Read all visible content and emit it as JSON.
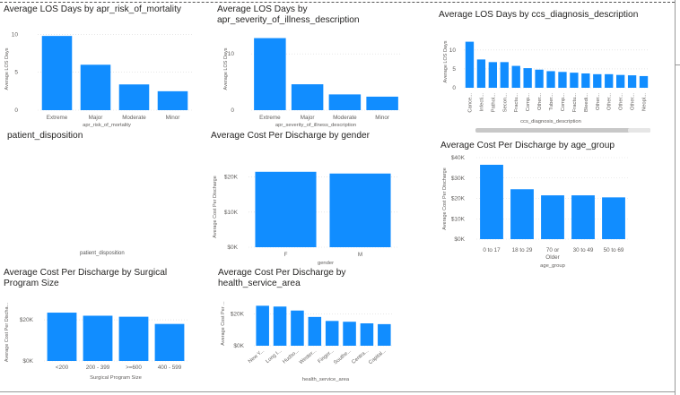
{
  "colors": {
    "bar": "#118DFF",
    "grid": "#d9d9d9",
    "text": "#605E5C",
    "title": "#252423"
  },
  "titles": {
    "mortality": "Average LOS Days by apr_risk_of_mortality",
    "severity_line1": "Average LOS Days by",
    "severity_line2": "apr_severity_of_illness_description",
    "diagnosis": "Average LOS Days by ccs_diagnosis_description",
    "disposition": "patient_disposition",
    "gender": "Average Cost Per Discharge by gender",
    "age": "Average Cost Per Discharge by age_group",
    "surgical_line1": "Average Cost Per Discharge by Surgical",
    "surgical_line2": "Program Size",
    "hsa_line1": "Average Cost Per Discharge by",
    "hsa_line2": "health_service_area"
  },
  "disposition_axis_label": "patient_disposition",
  "chart_data": [
    {
      "id": "mortality",
      "type": "bar",
      "title": "Average LOS Days by apr_risk_of_mortality",
      "xlabel": "apr_risk_of_mortality",
      "ylabel": "Average LOS Days",
      "categories": [
        "Extreme",
        "Major",
        "Moderate",
        "Minor"
      ],
      "values": [
        9.8,
        6.0,
        3.4,
        2.5
      ],
      "ylim": [
        0,
        11
      ],
      "yticks": [
        0,
        5,
        10
      ],
      "ytick_labels": [
        "0",
        "5",
        "10"
      ]
    },
    {
      "id": "severity",
      "type": "bar",
      "title": "Average LOS Days by apr_severity_of_illness_description",
      "xlabel": "apr_severity_of_illness_description",
      "ylabel": "Average LOS Days",
      "categories": [
        "Extreme",
        "Major",
        "Moderate",
        "Minor"
      ],
      "values": [
        12.8,
        4.6,
        2.8,
        2.4
      ],
      "ylim": [
        0,
        14
      ],
      "yticks": [
        0,
        10
      ],
      "ytick_labels": [
        "0",
        "10"
      ]
    },
    {
      "id": "diagnosis",
      "type": "bar",
      "title": "Average LOS Days by ccs_diagnosis_description",
      "xlabel": "ccs_diagnosis_description",
      "ylabel": "Average LOS Days",
      "categories": [
        "Cance...",
        "Infecti...",
        "Pathol...",
        "Secon...",
        "Fractu...",
        "Comp...",
        "Other...",
        "Tuber...",
        "Comp...",
        "Fractu...",
        "Bleedi...",
        "Other...",
        "Other...",
        "Other...",
        "Other...",
        "Neopl..."
      ],
      "values": [
        12.2,
        7.5,
        6.8,
        6.8,
        5.8,
        5.2,
        4.8,
        4.4,
        4.2,
        4.0,
        3.8,
        3.6,
        3.6,
        3.4,
        3.3,
        3.1
      ],
      "ylim": [
        0,
        14
      ],
      "yticks": [
        0,
        5,
        10
      ],
      "ytick_labels": [
        "0",
        "5",
        "10"
      ]
    },
    {
      "id": "gender",
      "type": "bar",
      "title": "Average Cost Per Discharge by gender",
      "xlabel": "gender",
      "ylabel": "Average Cost Per Discharge",
      "categories": [
        "F",
        "M"
      ],
      "values": [
        21500,
        21000
      ],
      "ylim": [
        0,
        24000
      ],
      "yticks": [
        0,
        10000,
        20000
      ],
      "ytick_labels": [
        "$0K",
        "$10K",
        "$20K"
      ]
    },
    {
      "id": "age",
      "type": "bar",
      "title": "Average Cost Per Discharge by age_group",
      "xlabel": "age_group",
      "ylabel": "Average Cost Per Discharge",
      "categories": [
        "0 to 17",
        "18 to 29",
        "70 or Older",
        "30 to 49",
        "50 to 69"
      ],
      "values": [
        36500,
        24500,
        21500,
        21500,
        20500
      ],
      "ylim": [
        0,
        40000
      ],
      "yticks": [
        0,
        10000,
        20000,
        30000,
        40000
      ],
      "ytick_labels": [
        "$0K",
        "$10K",
        "$20K",
        "$30K",
        "$40K"
      ]
    },
    {
      "id": "surgical",
      "type": "bar",
      "title": "Average Cost Per Discharge by Surgical Program Size",
      "xlabel": "Surgical Program Size",
      "ylabel": "Average Cost Per Discha...",
      "categories": [
        "<200",
        "200 - 399",
        ">=600",
        "400 - 599"
      ],
      "values": [
        23500,
        22000,
        21500,
        18000
      ],
      "ylim": [
        0,
        27000
      ],
      "yticks": [
        0,
        20000
      ],
      "ytick_labels": [
        "$0K",
        "$20K"
      ]
    },
    {
      "id": "hsa",
      "type": "bar",
      "title": "Average Cost Per Discharge by health_service_area",
      "xlabel": "health_service_area",
      "ylabel": "Average Cost Per ...",
      "categories": [
        "New Y...",
        "Long I...",
        "Hudso...",
        "Wester...",
        "Finger...",
        "Southe...",
        "Centra...",
        "Capital..."
      ],
      "values": [
        25000,
        24500,
        22000,
        18000,
        15500,
        15000,
        14000,
        13500
      ],
      "ylim": [
        0,
        28000
      ],
      "yticks": [
        0,
        20000
      ],
      "ytick_labels": [
        "$0K",
        "$20K"
      ]
    }
  ]
}
